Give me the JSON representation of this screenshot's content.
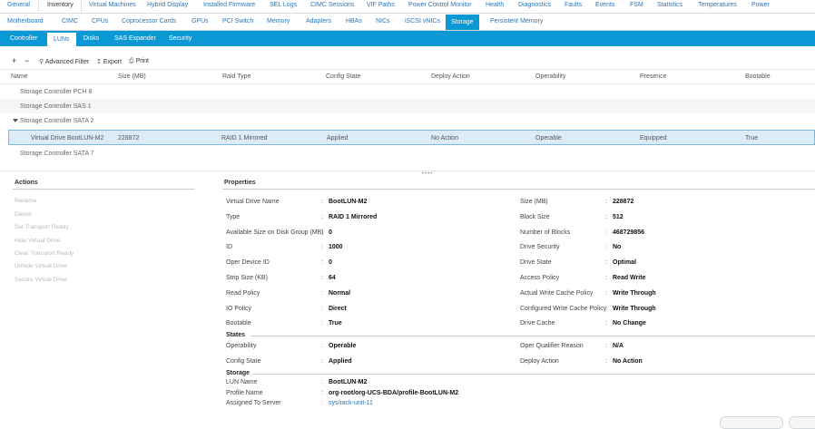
{
  "top_tabs": [
    "General",
    "Inventory",
    "Virtual Machines",
    "Hybrid Display",
    "Installed Firmware",
    "SEL Logs",
    "CIMC Sessions",
    "VIF Paths",
    "Power Control Monitor",
    "Health",
    "Diagnostics",
    "Faults",
    "Events",
    "FSM",
    "Statistics",
    "Temperatures",
    "Power"
  ],
  "sub_tabs": [
    "Motherboard",
    "CIMC",
    "CPUs",
    "Coprocessor Cards",
    "GPUs",
    "PCI Switch",
    "Memory",
    "Adapters",
    "HBAs",
    "NICs",
    "iSCSI vNICs",
    "Storage",
    "Persistent Memory"
  ],
  "storage_tabs": [
    "Controller",
    "LUNs",
    "Disks",
    "SAS Expander",
    "Security"
  ],
  "toolbar": {
    "add": "+",
    "remove": "−",
    "filter": "Advanced Filter",
    "export": "Export",
    "print": "Print"
  },
  "table": {
    "columns": [
      "Name",
      "Size (MB)",
      "Raid Type",
      "Config State",
      "Deploy Action",
      "Operability",
      "Presence",
      "Bootable"
    ],
    "rows": [
      {
        "name": "Storage Controller PCH 8"
      },
      {
        "name": "Storage Controller SAS 1"
      },
      {
        "name": "Storage Controller SATA 2"
      },
      {
        "name": "Virtual Drive BootLUN-M2",
        "size": "228872",
        "raid": "RAID 1 Mirrored",
        "config": "Applied",
        "deploy": "No Action",
        "operability": "Operable",
        "presence": "Equipped",
        "bootable": "True"
      },
      {
        "name": "Storage Controller SATA 7"
      }
    ]
  },
  "actions": {
    "title": "Actions",
    "items": [
      "Rename",
      "Delete",
      "Set Transport Ready",
      "Hide Virtual Drive",
      "Clear Transport Ready",
      "Unhide Virtual Drive",
      "Secure Virtual Drive"
    ]
  },
  "properties": {
    "title": "Properties",
    "left": [
      {
        "label": "Virtual Drive Name",
        "value": "BootLUN-M2"
      },
      {
        "label": "Type",
        "value": "RAID 1 Mirrored"
      },
      {
        "label": "Available Size on Disk Group (MB)",
        "value": "0"
      },
      {
        "label": "ID",
        "value": "1000"
      },
      {
        "label": "Oper Device ID",
        "value": "0"
      },
      {
        "label": "Strip Size (KB)",
        "value": "64"
      },
      {
        "label": "Read Policy",
        "value": "Normal"
      },
      {
        "label": "IO Policy",
        "value": "Direct"
      },
      {
        "label": "Bootable",
        "value": "True"
      }
    ],
    "right": [
      {
        "label": "Size (MB)",
        "value": "228872"
      },
      {
        "label": "Block Size",
        "value": "512"
      },
      {
        "label": "Number of Blocks",
        "value": "468729856"
      },
      {
        "label": "Drive Security",
        "value": "No"
      },
      {
        "label": "Drive State",
        "value": "Optimal"
      },
      {
        "label": "Access Policy",
        "value": "Read Write"
      },
      {
        "label": "Actual Write Cache Policy",
        "value": "Write Through"
      },
      {
        "label": "Configured Write Cache Policy",
        "value": "Write Through"
      },
      {
        "label": "Drive Cache",
        "value": "No Change"
      }
    ],
    "states": {
      "title": "States",
      "left": [
        {
          "label": "Operability",
          "value": "Operable"
        },
        {
          "label": "Config State",
          "value": "Applied"
        }
      ],
      "right": [
        {
          "label": "Oper Qualifier Reason",
          "value": "N/A"
        },
        {
          "label": "Deploy Action",
          "value": "No Action"
        }
      ]
    },
    "storage": {
      "title": "Storage",
      "items": [
        {
          "label": "LUN Name",
          "value": "BootLUN-M2"
        },
        {
          "label": "Profile Name",
          "value": "org-root/org-UCS-BDA/profile-BootLUN-M2"
        },
        {
          "label": "Assigned To Server",
          "value": "sys/rack-unit-11"
        }
      ]
    }
  },
  "colors": {
    "accent": "#0a99d5",
    "link": "#2c75b8",
    "selected_row": "#dcecf7"
  }
}
